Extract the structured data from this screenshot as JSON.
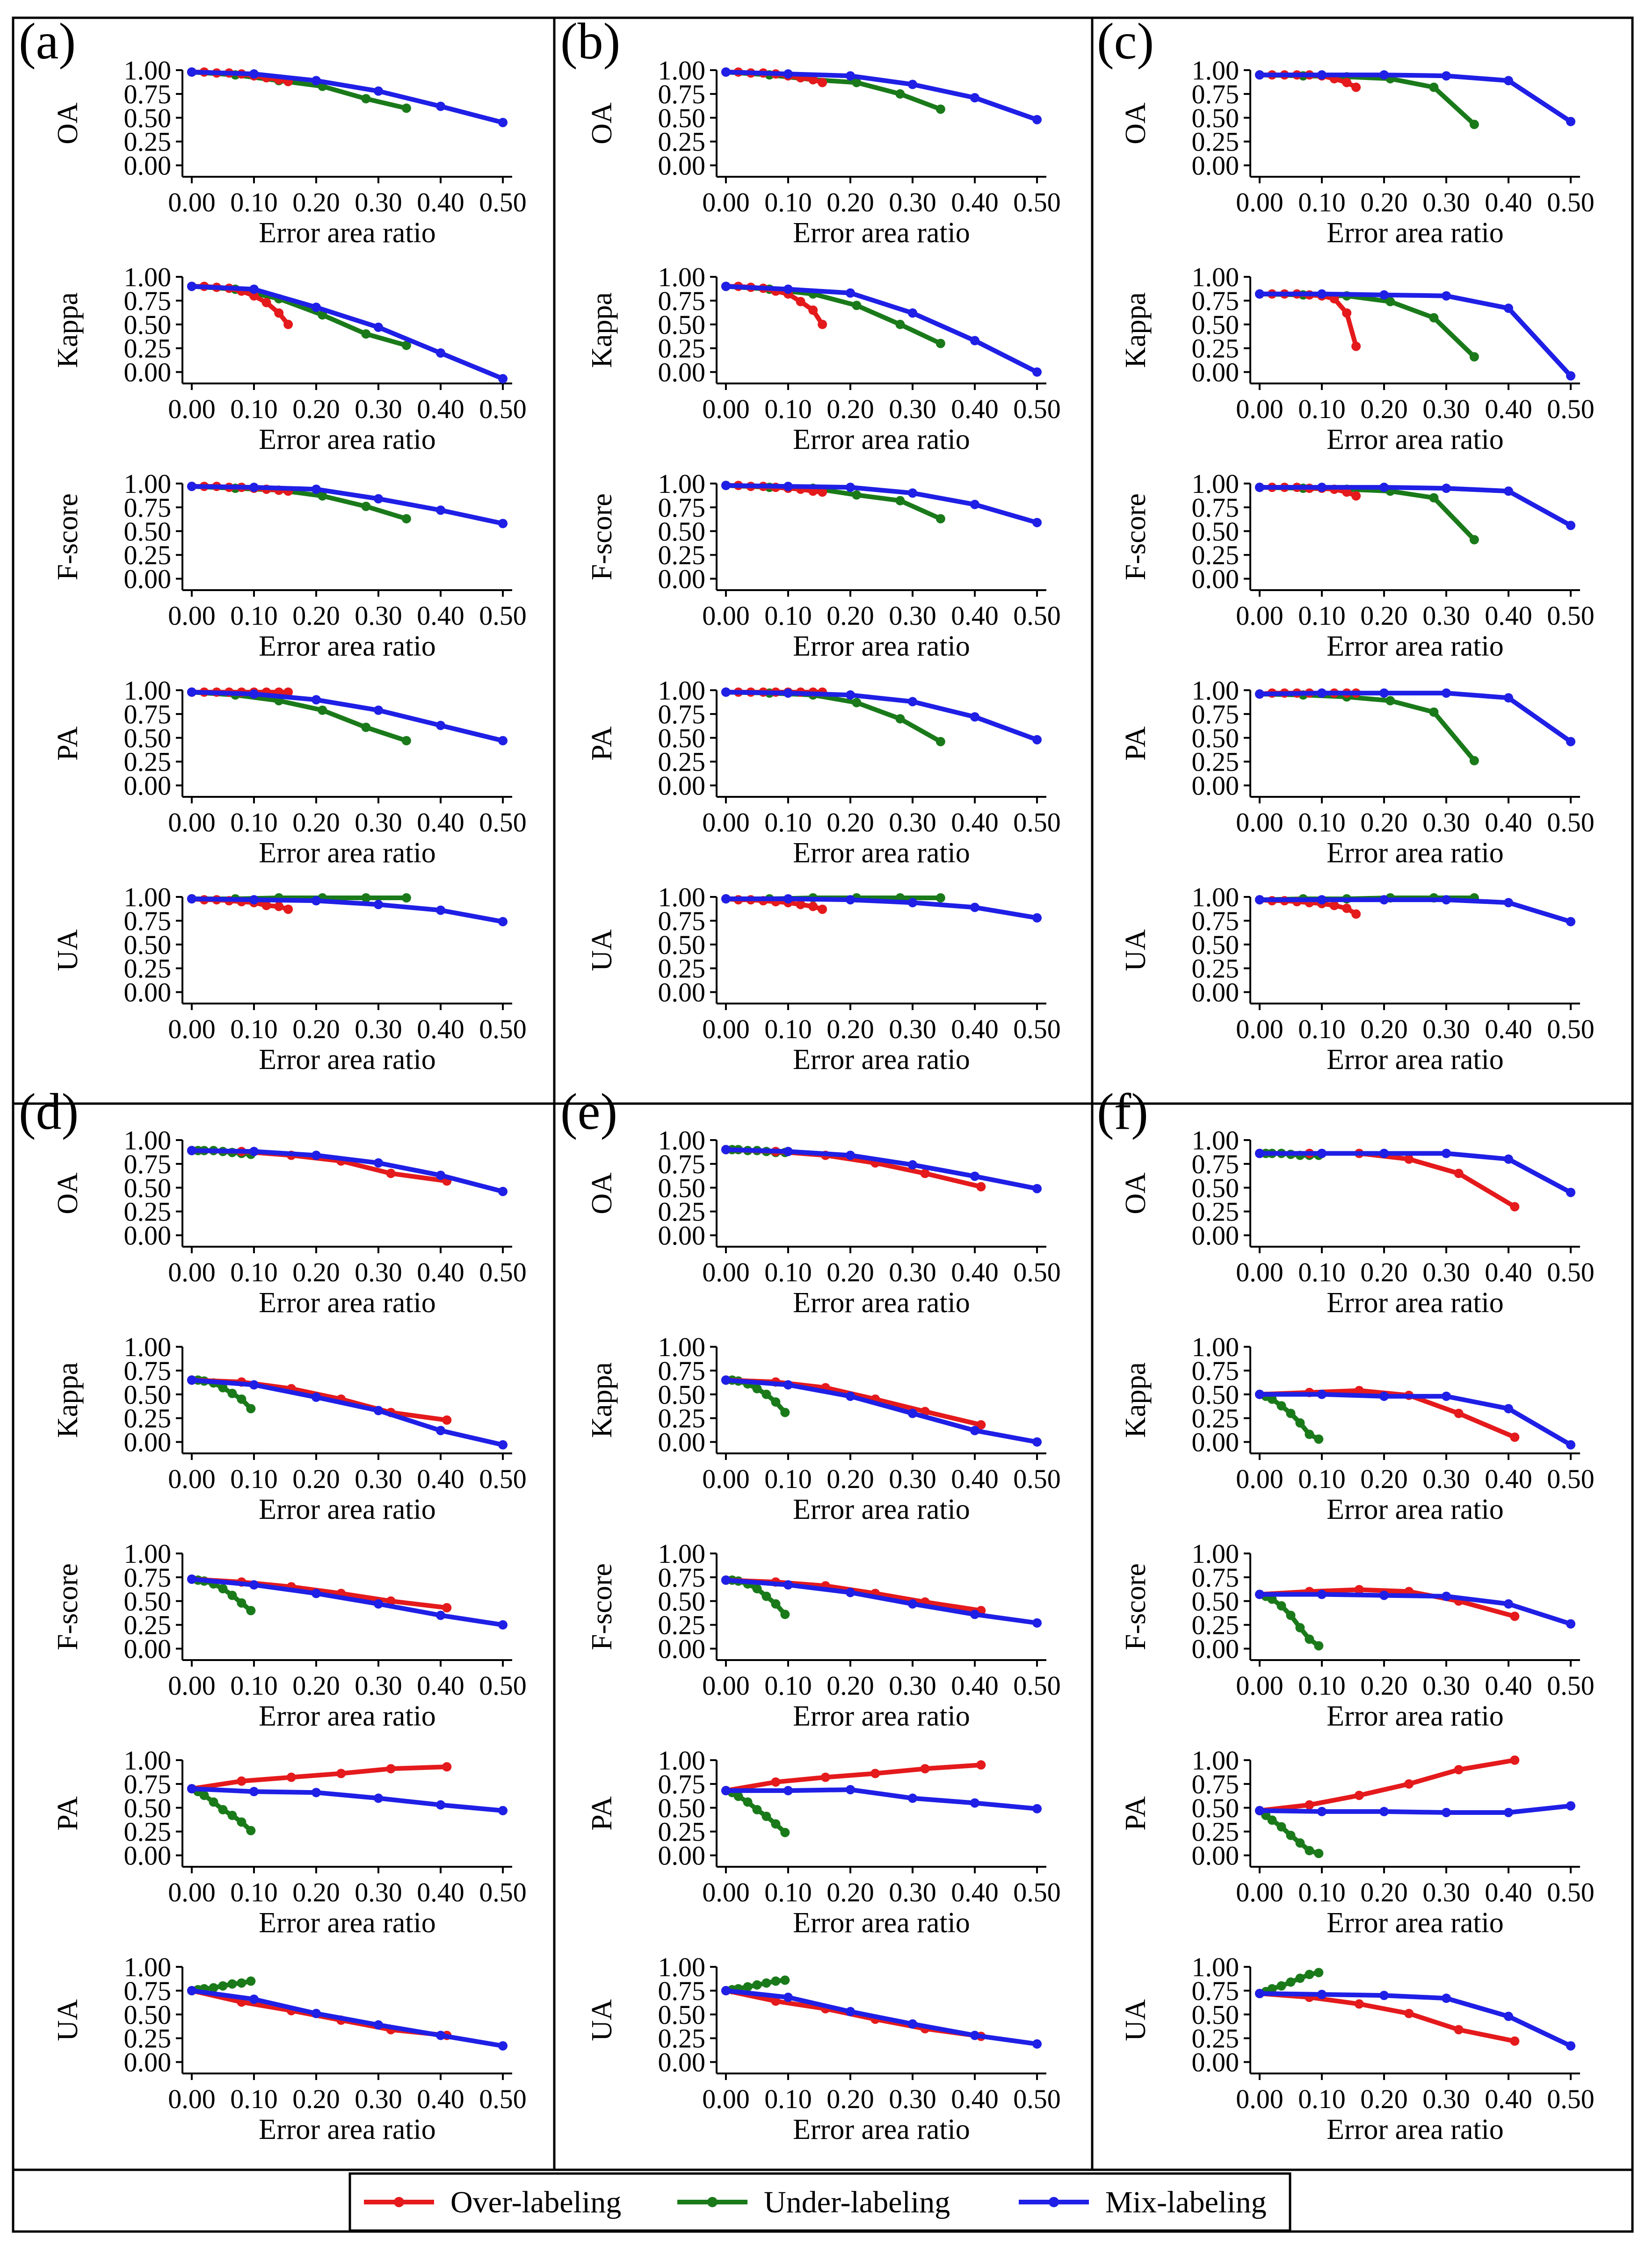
{
  "panels": [
    "(a)",
    "(b)",
    "(c)",
    "(d)",
    "(e)",
    "(f)"
  ],
  "metrics": [
    "OA",
    "Kappa",
    "F-score",
    "PA",
    "UA"
  ],
  "xlabel": "Error area ratio",
  "x_ticks": [
    "0.00",
    "0.10",
    "0.20",
    "0.30",
    "0.40",
    "0.50"
  ],
  "y_ticks": [
    "0.00",
    "0.25",
    "0.50",
    "0.75",
    "1.00"
  ],
  "xlim": [
    -0.015,
    0.515
  ],
  "ylim": [
    -0.12,
    1.0
  ],
  "legend": [
    {
      "label": "Over-labeling",
      "color": "#e41a1c"
    },
    {
      "label": "Under-labeling",
      "color": "#1a7a1a"
    },
    {
      "label": "Mix-labeling",
      "color": "#1f1fe6"
    }
  ],
  "chart_data": {
    "type": "line",
    "x": {
      "over_top": [
        0.0,
        0.02,
        0.04,
        0.06,
        0.08,
        0.1,
        0.12,
        0.14,
        0.155
      ],
      "under_top": [
        0.0,
        0.07,
        0.14,
        0.21,
        0.28,
        0.345
      ],
      "mix_top": [
        0.0,
        0.1,
        0.2,
        0.3,
        0.4,
        0.5
      ],
      "over_bot": [
        0.0,
        0.08,
        0.16,
        0.24,
        0.32,
        0.41
      ],
      "under_bot": [
        0.0,
        0.01,
        0.02,
        0.035,
        0.05,
        0.065,
        0.08,
        0.095
      ],
      "mix_bot": [
        0.0,
        0.1,
        0.2,
        0.3,
        0.4,
        0.5
      ]
    },
    "panels": [
      {
        "OA": {
          "over": [
            0.98,
            0.98,
            0.97,
            0.97,
            0.96,
            0.94,
            0.92,
            0.9,
            0.88
          ],
          "under": [
            0.98,
            0.95,
            0.89,
            0.83,
            0.7,
            0.6
          ],
          "mix": [
            0.98,
            0.96,
            0.89,
            0.78,
            0.62,
            0.45
          ]
        },
        "Kappa": {
          "over": [
            0.9,
            0.9,
            0.89,
            0.88,
            0.85,
            0.8,
            0.73,
            0.62,
            0.5
          ],
          "under": [
            0.9,
            0.87,
            0.77,
            0.6,
            0.4,
            0.28
          ],
          "mix": [
            0.9,
            0.87,
            0.68,
            0.47,
            0.2,
            -0.07
          ]
        },
        "F-score": {
          "over": [
            0.97,
            0.97,
            0.97,
            0.96,
            0.96,
            0.95,
            0.94,
            0.93,
            0.92
          ],
          "under": [
            0.97,
            0.95,
            0.93,
            0.87,
            0.76,
            0.63
          ],
          "mix": [
            0.97,
            0.96,
            0.94,
            0.84,
            0.72,
            0.58
          ]
        },
        "PA": {
          "over": [
            0.98,
            0.98,
            0.98,
            0.98,
            0.98,
            0.98,
            0.98,
            0.98,
            0.98
          ],
          "under": [
            0.98,
            0.95,
            0.89,
            0.79,
            0.61,
            0.47
          ],
          "mix": [
            0.98,
            0.96,
            0.9,
            0.79,
            0.63,
            0.47
          ]
        },
        "UA": {
          "over": [
            0.98,
            0.97,
            0.97,
            0.96,
            0.95,
            0.94,
            0.91,
            0.9,
            0.87
          ],
          "under": [
            0.98,
            0.98,
            0.99,
            0.99,
            0.99,
            0.99
          ],
          "mix": [
            0.98,
            0.97,
            0.96,
            0.92,
            0.86,
            0.74
          ]
        }
      },
      {
        "OA": {
          "over": [
            0.98,
            0.98,
            0.97,
            0.97,
            0.96,
            0.94,
            0.92,
            0.9,
            0.87
          ],
          "under": [
            0.98,
            0.95,
            0.9,
            0.87,
            0.75,
            0.59
          ],
          "mix": [
            0.98,
            0.96,
            0.94,
            0.85,
            0.71,
            0.48
          ]
        },
        "Kappa": {
          "over": [
            0.9,
            0.9,
            0.89,
            0.88,
            0.85,
            0.82,
            0.74,
            0.65,
            0.5
          ],
          "under": [
            0.9,
            0.87,
            0.82,
            0.7,
            0.5,
            0.3
          ],
          "mix": [
            0.9,
            0.87,
            0.83,
            0.62,
            0.33,
            0.0
          ]
        },
        "F-score": {
          "over": [
            0.98,
            0.98,
            0.97,
            0.97,
            0.96,
            0.95,
            0.94,
            0.92,
            0.91
          ],
          "under": [
            0.98,
            0.96,
            0.95,
            0.88,
            0.82,
            0.63
          ],
          "mix": [
            0.98,
            0.97,
            0.96,
            0.9,
            0.78,
            0.59
          ]
        },
        "PA": {
          "over": [
            0.98,
            0.98,
            0.98,
            0.98,
            0.98,
            0.98,
            0.98,
            0.98,
            0.98
          ],
          "under": [
            0.98,
            0.97,
            0.95,
            0.87,
            0.7,
            0.46
          ],
          "mix": [
            0.98,
            0.97,
            0.95,
            0.88,
            0.72,
            0.48
          ]
        },
        "UA": {
          "over": [
            0.98,
            0.97,
            0.97,
            0.96,
            0.95,
            0.94,
            0.92,
            0.9,
            0.87
          ],
          "under": [
            0.98,
            0.98,
            0.99,
            0.99,
            0.99,
            0.99
          ],
          "mix": [
            0.98,
            0.98,
            0.97,
            0.94,
            0.89,
            0.78
          ]
        }
      },
      {
        "OA": {
          "over": [
            0.95,
            0.95,
            0.95,
            0.95,
            0.95,
            0.94,
            0.91,
            0.87,
            0.82
          ],
          "under": [
            0.95,
            0.94,
            0.93,
            0.91,
            0.82,
            0.43
          ],
          "mix": [
            0.95,
            0.95,
            0.95,
            0.94,
            0.89,
            0.46
          ]
        },
        "Kappa": {
          "over": [
            0.82,
            0.82,
            0.82,
            0.82,
            0.81,
            0.8,
            0.77,
            0.62,
            0.27
          ],
          "under": [
            0.82,
            0.81,
            0.8,
            0.74,
            0.57,
            0.16
          ],
          "mix": [
            0.82,
            0.82,
            0.81,
            0.8,
            0.67,
            -0.04
          ]
        },
        "F-score": {
          "over": [
            0.96,
            0.96,
            0.96,
            0.96,
            0.95,
            0.95,
            0.94,
            0.91,
            0.87
          ],
          "under": [
            0.96,
            0.95,
            0.94,
            0.92,
            0.85,
            0.41
          ],
          "mix": [
            0.96,
            0.96,
            0.96,
            0.95,
            0.92,
            0.56
          ]
        },
        "PA": {
          "over": [
            0.96,
            0.97,
            0.97,
            0.97,
            0.97,
            0.97,
            0.97,
            0.97,
            0.97
          ],
          "under": [
            0.96,
            0.95,
            0.93,
            0.89,
            0.77,
            0.26
          ],
          "mix": [
            0.96,
            0.97,
            0.97,
            0.97,
            0.92,
            0.46
          ]
        },
        "UA": {
          "over": [
            0.97,
            0.96,
            0.96,
            0.95,
            0.94,
            0.93,
            0.91,
            0.88,
            0.82
          ],
          "under": [
            0.97,
            0.98,
            0.98,
            0.99,
            0.99,
            0.99
          ],
          "mix": [
            0.97,
            0.97,
            0.97,
            0.97,
            0.94,
            0.74
          ]
        }
      },
      {
        "OA": {
          "over": [
            0.89,
            0.88,
            0.84,
            0.78,
            0.65,
            0.57
          ],
          "under": [
            0.89,
            0.89,
            0.89,
            0.89,
            0.88,
            0.87,
            0.86,
            0.85
          ],
          "mix": [
            0.89,
            0.88,
            0.84,
            0.76,
            0.63,
            0.46
          ]
        },
        "Kappa": {
          "over": [
            0.65,
            0.63,
            0.56,
            0.45,
            0.31,
            0.23
          ],
          "under": [
            0.65,
            0.65,
            0.64,
            0.62,
            0.57,
            0.51,
            0.45,
            0.35
          ],
          "mix": [
            0.65,
            0.6,
            0.47,
            0.33,
            0.12,
            -0.03
          ]
        },
        "F-score": {
          "over": [
            0.73,
            0.7,
            0.65,
            0.58,
            0.5,
            0.43
          ],
          "under": [
            0.73,
            0.72,
            0.71,
            0.68,
            0.63,
            0.56,
            0.48,
            0.4
          ],
          "mix": [
            0.73,
            0.67,
            0.58,
            0.47,
            0.35,
            0.25
          ]
        },
        "PA": {
          "over": [
            0.7,
            0.78,
            0.82,
            0.86,
            0.91,
            0.93
          ],
          "under": [
            0.7,
            0.67,
            0.63,
            0.56,
            0.48,
            0.42,
            0.35,
            0.26
          ],
          "mix": [
            0.7,
            0.67,
            0.66,
            0.6,
            0.53,
            0.47
          ]
        },
        "UA": {
          "over": [
            0.75,
            0.63,
            0.54,
            0.44,
            0.34,
            0.28
          ],
          "under": [
            0.75,
            0.76,
            0.77,
            0.78,
            0.8,
            0.82,
            0.83,
            0.85
          ],
          "mix": [
            0.75,
            0.66,
            0.51,
            0.39,
            0.28,
            0.17
          ]
        }
      },
      {
        "OA": {
          "over": [
            0.9,
            0.88,
            0.84,
            0.76,
            0.65,
            0.51
          ],
          "under": [
            0.9,
            0.9,
            0.9,
            0.89,
            0.89,
            0.88,
            0.87,
            0.87
          ],
          "mix": [
            0.9,
            0.88,
            0.84,
            0.74,
            0.62,
            0.49
          ]
        },
        "Kappa": {
          "over": [
            0.65,
            0.63,
            0.57,
            0.45,
            0.32,
            0.18
          ],
          "under": [
            0.65,
            0.65,
            0.64,
            0.61,
            0.56,
            0.5,
            0.42,
            0.31
          ],
          "mix": [
            0.65,
            0.6,
            0.48,
            0.3,
            0.12,
            0.0
          ]
        },
        "F-score": {
          "over": [
            0.72,
            0.7,
            0.66,
            0.58,
            0.49,
            0.4
          ],
          "under": [
            0.72,
            0.72,
            0.71,
            0.68,
            0.63,
            0.55,
            0.47,
            0.36
          ],
          "mix": [
            0.72,
            0.67,
            0.59,
            0.47,
            0.36,
            0.27
          ]
        },
        "PA": {
          "over": [
            0.68,
            0.77,
            0.82,
            0.86,
            0.91,
            0.95
          ],
          "under": [
            0.68,
            0.66,
            0.62,
            0.56,
            0.48,
            0.41,
            0.33,
            0.24
          ],
          "mix": [
            0.68,
            0.68,
            0.69,
            0.6,
            0.55,
            0.49
          ]
        },
        "UA": {
          "over": [
            0.75,
            0.64,
            0.56,
            0.45,
            0.35,
            0.27
          ],
          "under": [
            0.75,
            0.76,
            0.77,
            0.79,
            0.81,
            0.83,
            0.85,
            0.86
          ],
          "mix": [
            0.75,
            0.68,
            0.53,
            0.4,
            0.28,
            0.19
          ]
        }
      },
      {
        "OA": {
          "over": [
            0.86,
            0.86,
            0.86,
            0.8,
            0.65,
            0.3
          ],
          "under": [
            0.86,
            0.86,
            0.86,
            0.86,
            0.85,
            0.84,
            0.84,
            0.84
          ],
          "mix": [
            0.86,
            0.86,
            0.86,
            0.86,
            0.8,
            0.45
          ]
        },
        "Kappa": {
          "over": [
            0.5,
            0.52,
            0.54,
            0.49,
            0.3,
            0.05
          ],
          "under": [
            0.5,
            0.48,
            0.45,
            0.38,
            0.3,
            0.2,
            0.08,
            0.03
          ],
          "mix": [
            0.5,
            0.5,
            0.48,
            0.48,
            0.35,
            -0.03
          ]
        },
        "F-score": {
          "over": [
            0.57,
            0.6,
            0.62,
            0.6,
            0.5,
            0.34
          ],
          "under": [
            0.57,
            0.55,
            0.52,
            0.45,
            0.35,
            0.22,
            0.1,
            0.03
          ],
          "mix": [
            0.57,
            0.57,
            0.56,
            0.55,
            0.47,
            0.26
          ]
        },
        "PA": {
          "over": [
            0.47,
            0.53,
            0.63,
            0.75,
            0.9,
            1.0
          ],
          "under": [
            0.47,
            0.42,
            0.37,
            0.3,
            0.21,
            0.13,
            0.05,
            0.02
          ],
          "mix": [
            0.47,
            0.46,
            0.46,
            0.45,
            0.45,
            0.52
          ]
        },
        "UA": {
          "over": [
            0.72,
            0.68,
            0.61,
            0.51,
            0.34,
            0.22
          ],
          "under": [
            0.72,
            0.74,
            0.77,
            0.8,
            0.84,
            0.88,
            0.92,
            0.94
          ],
          "mix": [
            0.72,
            0.71,
            0.7,
            0.67,
            0.48,
            0.17
          ]
        }
      }
    ]
  }
}
